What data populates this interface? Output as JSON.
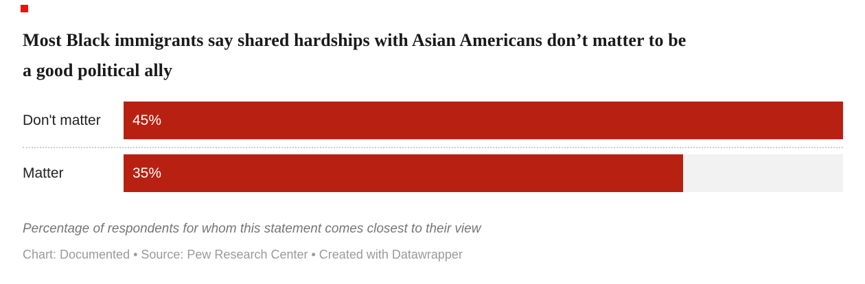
{
  "logo": {
    "color": "#ee1111"
  },
  "header": {
    "title_lines": [
      "Most Black immigrants say shared hardships with Asian Americans don’t matter to be",
      "a good political ally"
    ]
  },
  "chart_data": {
    "type": "bar",
    "orientation": "horizontal",
    "title": "Most Black immigrants say shared hardships with Asian Americans don’t matter to be a good political ally",
    "categories": [
      "Don't matter",
      "Matter"
    ],
    "values": [
      45,
      35
    ],
    "value_labels": [
      "45%",
      "35%"
    ],
    "xlim": [
      0,
      45
    ],
    "xlabel": "",
    "ylabel": "",
    "grid": false,
    "legend": false,
    "bar_color": "#b82112",
    "track_color": "#f2f2f2",
    "note": "Percentage of respondents for whom this statement comes closest to their view",
    "source_line": "Chart: Documented • Source: Pew Research Center • Created with Datawrapper"
  },
  "footer": {
    "note": "Percentage of respondents for whom this statement comes closest to their view",
    "byline": "Chart: Documented • Source: Pew Research Center • Created with Datawrapper"
  },
  "colors": {
    "bar": "#b82112",
    "track": "#f2f2f2",
    "separator": "#cccccc",
    "title_text": "#1a1a1a",
    "category_text": "#222222",
    "value_text": "#ffffff",
    "note_text": "#757575",
    "byline_text": "#9a9a9a",
    "logo": "#ee1111"
  }
}
